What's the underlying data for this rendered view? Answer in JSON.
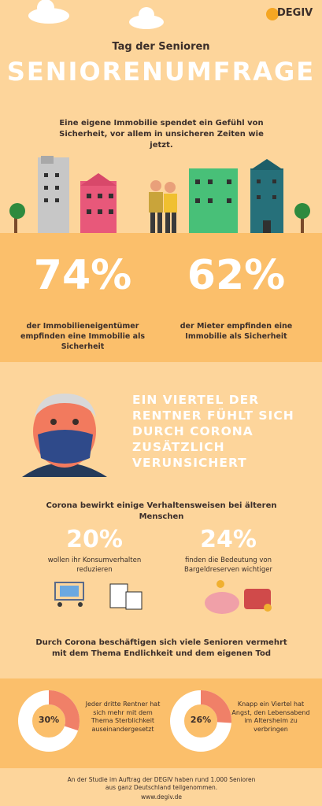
{
  "logo": "DEGIV",
  "subtitle": "Tag der Senioren",
  "title": "SENIORENUMFRAGE",
  "intro": "Eine eigene Immobilie spendet ein Gefühl von Sicherheit, vor allem in unsicheren Zeiten wie jetzt.",
  "stats": [
    {
      "figure": "74%",
      "text": "der Immobilieneigentümer empfinden eine Immobilie als Sicherheit"
    },
    {
      "figure": "62%",
      "text": "der Mieter empfinden eine Immobilie als Sicherheit"
    }
  ],
  "headline": "EIN VIERTEL DER RENTNER FÜHLT SICH DURCH CORONA ZUSÄTZLICH VERUNSICHERT",
  "corona_intro": "Corona bewirkt einige Verhaltensweisen bei älteren Menschen",
  "corona_stats": [
    {
      "figure": "20%",
      "text": "wollen ihr Konsumverhalten reduzieren"
    },
    {
      "figure": "24%",
      "text": "finden die Bedeutung von Bargeldreserven wichtiger"
    }
  ],
  "mortality_intro": "Durch Corona beschäftigen sich viele Senioren vermehrt mit dem Thema Endlichkeit und dem eigenen Tod",
  "donuts": [
    {
      "value": 30,
      "value_label": "30%",
      "text": "Jeder dritte Rentner hat sich mehr mit dem Thema Sterblichkeit auseinandergesetzt"
    },
    {
      "value": 26,
      "value_label": "26%",
      "text": "Knapp ein Viertel hat Angst, den Lebensabend im Altersheim zu verbringen"
    }
  ],
  "footer": "An der Studie im Auftrag der DEGIV haben rund 1.000 Senioren aus ganz Deutschland teilgenommen.",
  "url": "www.degiv.de"
}
